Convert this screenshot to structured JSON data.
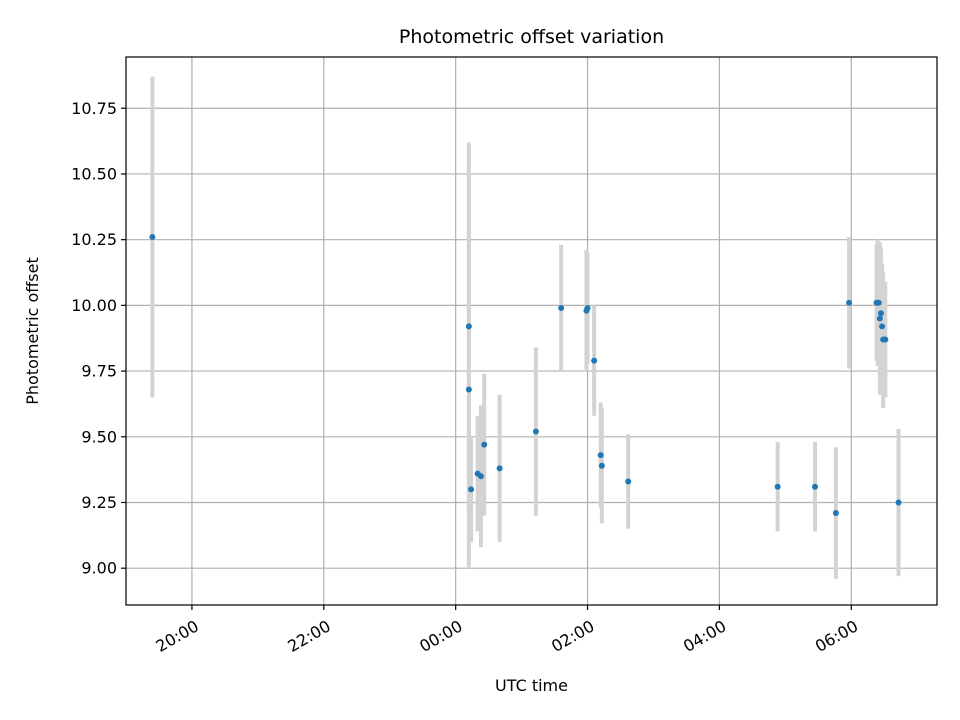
{
  "chart_data": {
    "type": "scatter",
    "title": "Photometric offset variation",
    "xlabel": "UTC time",
    "ylabel": "Photometric offset",
    "x_unit": "UTC hours",
    "xlim": [
      "19:00",
      "07:18"
    ],
    "ylim": [
      8.86,
      10.945
    ],
    "grid": true,
    "x_ticks": [
      "20:00",
      "22:00",
      "00:00",
      "02:00",
      "04:00",
      "06:00"
    ],
    "y_ticks": [
      "9.00",
      "9.25",
      "9.50",
      "9.75",
      "10.00",
      "10.25",
      "10.50",
      "10.75"
    ],
    "point_color": "#1f77b4",
    "errorbar_color": "#d3d3d3",
    "points": [
      {
        "x": "19:24",
        "y": 10.26,
        "err": 0.61
      },
      {
        "x": "00:12",
        "y": 9.92,
        "err": 0.7
      },
      {
        "x": "00:12",
        "y": 9.68,
        "err": 0.68
      },
      {
        "x": "00:14",
        "y": 9.3,
        "err": 0.2
      },
      {
        "x": "00:20",
        "y": 9.36,
        "err": 0.22
      },
      {
        "x": "00:23",
        "y": 9.35,
        "err": 0.27
      },
      {
        "x": "00:26",
        "y": 9.47,
        "err": 0.27
      },
      {
        "x": "00:40",
        "y": 9.38,
        "err": 0.28
      },
      {
        "x": "01:13",
        "y": 9.52,
        "err": 0.32
      },
      {
        "x": "01:36",
        "y": 9.99,
        "err": 0.24
      },
      {
        "x": "01:59",
        "y": 9.98,
        "err": 0.23
      },
      {
        "x": "02:00",
        "y": 9.99,
        "err": 0.21
      },
      {
        "x": "02:06",
        "y": 9.79,
        "err": 0.21
      },
      {
        "x": "02:12",
        "y": 9.43,
        "err": 0.2
      },
      {
        "x": "02:13",
        "y": 9.39,
        "err": 0.22
      },
      {
        "x": "02:37",
        "y": 9.33,
        "err": 0.18
      },
      {
        "x": "04:53",
        "y": 9.31,
        "err": 0.17
      },
      {
        "x": "05:27",
        "y": 9.31,
        "err": 0.17
      },
      {
        "x": "05:46",
        "y": 9.21,
        "err": 0.25
      },
      {
        "x": "05:58",
        "y": 10.01,
        "err": 0.25
      },
      {
        "x": "06:23",
        "y": 10.01,
        "err": 0.22
      },
      {
        "x": "06:24",
        "y": 10.01,
        "err": 0.24
      },
      {
        "x": "06:25",
        "y": 10.01,
        "err": 0.22
      },
      {
        "x": "06:26",
        "y": 9.95,
        "err": 0.29
      },
      {
        "x": "06:27",
        "y": 9.97,
        "err": 0.25
      },
      {
        "x": "06:28",
        "y": 9.92,
        "err": 0.24
      },
      {
        "x": "06:29",
        "y": 9.87,
        "err": 0.26
      },
      {
        "x": "06:31",
        "y": 9.87,
        "err": 0.22
      },
      {
        "x": "06:43",
        "y": 9.25,
        "err": 0.28
      }
    ]
  }
}
